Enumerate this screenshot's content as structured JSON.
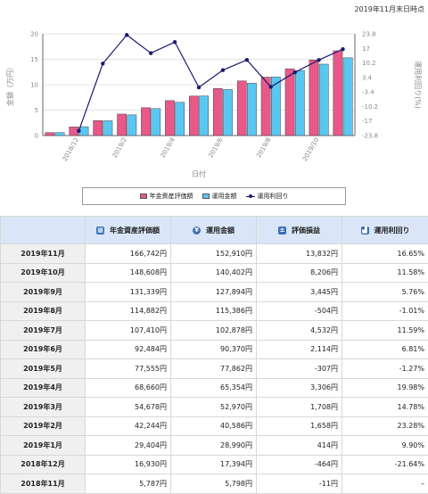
{
  "as_of": "2019年11月末日時点",
  "chart_data": {
    "type": "bar",
    "categories": [
      "2018/11",
      "2018/12",
      "2019/1",
      "2019/2",
      "2019/3",
      "2019/4",
      "2019/5",
      "2019/6",
      "2019/7",
      "2019/8",
      "2019/9",
      "2019/10",
      "2019/11"
    ],
    "x_tick_labels": [
      "2018/12",
      "2019/2",
      "2019/4",
      "2019/6",
      "2019/8",
      "2019/10"
    ],
    "xlabel": "日付",
    "ylabel": "金額（万円）",
    "y2label": "運用利回り(%)",
    "ylim": [
      0,
      20
    ],
    "y_ticks": [
      "0",
      "5",
      "10",
      "15",
      "20"
    ],
    "y2lim": [
      -23.8,
      23.8
    ],
    "y2_ticks": [
      "-23.8",
      "-17",
      "-10.2",
      "-3.4",
      "3.4",
      "10.2",
      "17",
      "23.8"
    ],
    "series": [
      {
        "name": "年金資産評価額",
        "type": "bar",
        "color": "#e8598a",
        "values": [
          0.58,
          1.69,
          2.94,
          4.22,
          5.47,
          6.87,
          7.76,
          9.25,
          10.74,
          11.49,
          13.13,
          14.86,
          16.67
        ]
      },
      {
        "name": "運用金額",
        "type": "bar",
        "color": "#5bc7f0",
        "values": [
          0.58,
          1.74,
          2.9,
          4.06,
          5.3,
          6.54,
          7.79,
          9.04,
          10.29,
          11.54,
          12.79,
          14.04,
          15.29
        ]
      },
      {
        "name": "運用利回り",
        "type": "line",
        "color": "#1a1a6e",
        "values": [
          null,
          -21.64,
          9.9,
          23.28,
          14.78,
          19.98,
          -1.27,
          6.81,
          11.59,
          -1.01,
          5.76,
          11.58,
          16.65
        ]
      }
    ],
    "legend_position": "bottom"
  },
  "table": {
    "headers": [
      {
        "label": "",
        "icon": ""
      },
      {
        "label": "年金資産評価額",
        "icon": "calculator-icon",
        "glyph": "▦"
      },
      {
        "label": "運用金額",
        "icon": "yen-coin-icon",
        "glyph": "¥"
      },
      {
        "label": "評価損益",
        "icon": "plus-minus-icon",
        "glyph": "±"
      },
      {
        "label": "運用利回り",
        "icon": "bar-chart-icon",
        "glyph": "▟"
      }
    ],
    "rows": [
      {
        "month": "2019年11月",
        "asset": "166,742円",
        "invest": "152,910円",
        "pl": "13,832円",
        "yield": "16.65%"
      },
      {
        "month": "2019年10月",
        "asset": "148,608円",
        "invest": "140,402円",
        "pl": "8,206円",
        "yield": "11.58%"
      },
      {
        "month": "2019年9月",
        "asset": "131,339円",
        "invest": "127,894円",
        "pl": "3,445円",
        "yield": "5.76%"
      },
      {
        "month": "2019年8月",
        "asset": "114,882円",
        "invest": "115,386円",
        "pl": "-504円",
        "yield": "-1.01%"
      },
      {
        "month": "2019年7月",
        "asset": "107,410円",
        "invest": "102,878円",
        "pl": "4,532円",
        "yield": "11.59%"
      },
      {
        "month": "2019年6月",
        "asset": "92,484円",
        "invest": "90,370円",
        "pl": "2,114円",
        "yield": "6.81%"
      },
      {
        "month": "2019年5月",
        "asset": "77,555円",
        "invest": "77,862円",
        "pl": "-307円",
        "yield": "-1.27%"
      },
      {
        "month": "2019年4月",
        "asset": "68,660円",
        "invest": "65,354円",
        "pl": "3,306円",
        "yield": "19.98%"
      },
      {
        "month": "2019年3月",
        "asset": "54,678円",
        "invest": "52,970円",
        "pl": "1,708円",
        "yield": "14.78%"
      },
      {
        "month": "2019年2月",
        "asset": "42,244円",
        "invest": "40,586円",
        "pl": "1,658円",
        "yield": "23.28%"
      },
      {
        "month": "2019年1月",
        "asset": "29,404円",
        "invest": "28,990円",
        "pl": "414円",
        "yield": "9.90%"
      },
      {
        "month": "2018年12月",
        "asset": "16,930円",
        "invest": "17,394円",
        "pl": "-464円",
        "yield": "-21.64%"
      },
      {
        "month": "2018年11月",
        "asset": "5,787円",
        "invest": "5,798円",
        "pl": "-11円",
        "yield": "–"
      }
    ]
  }
}
